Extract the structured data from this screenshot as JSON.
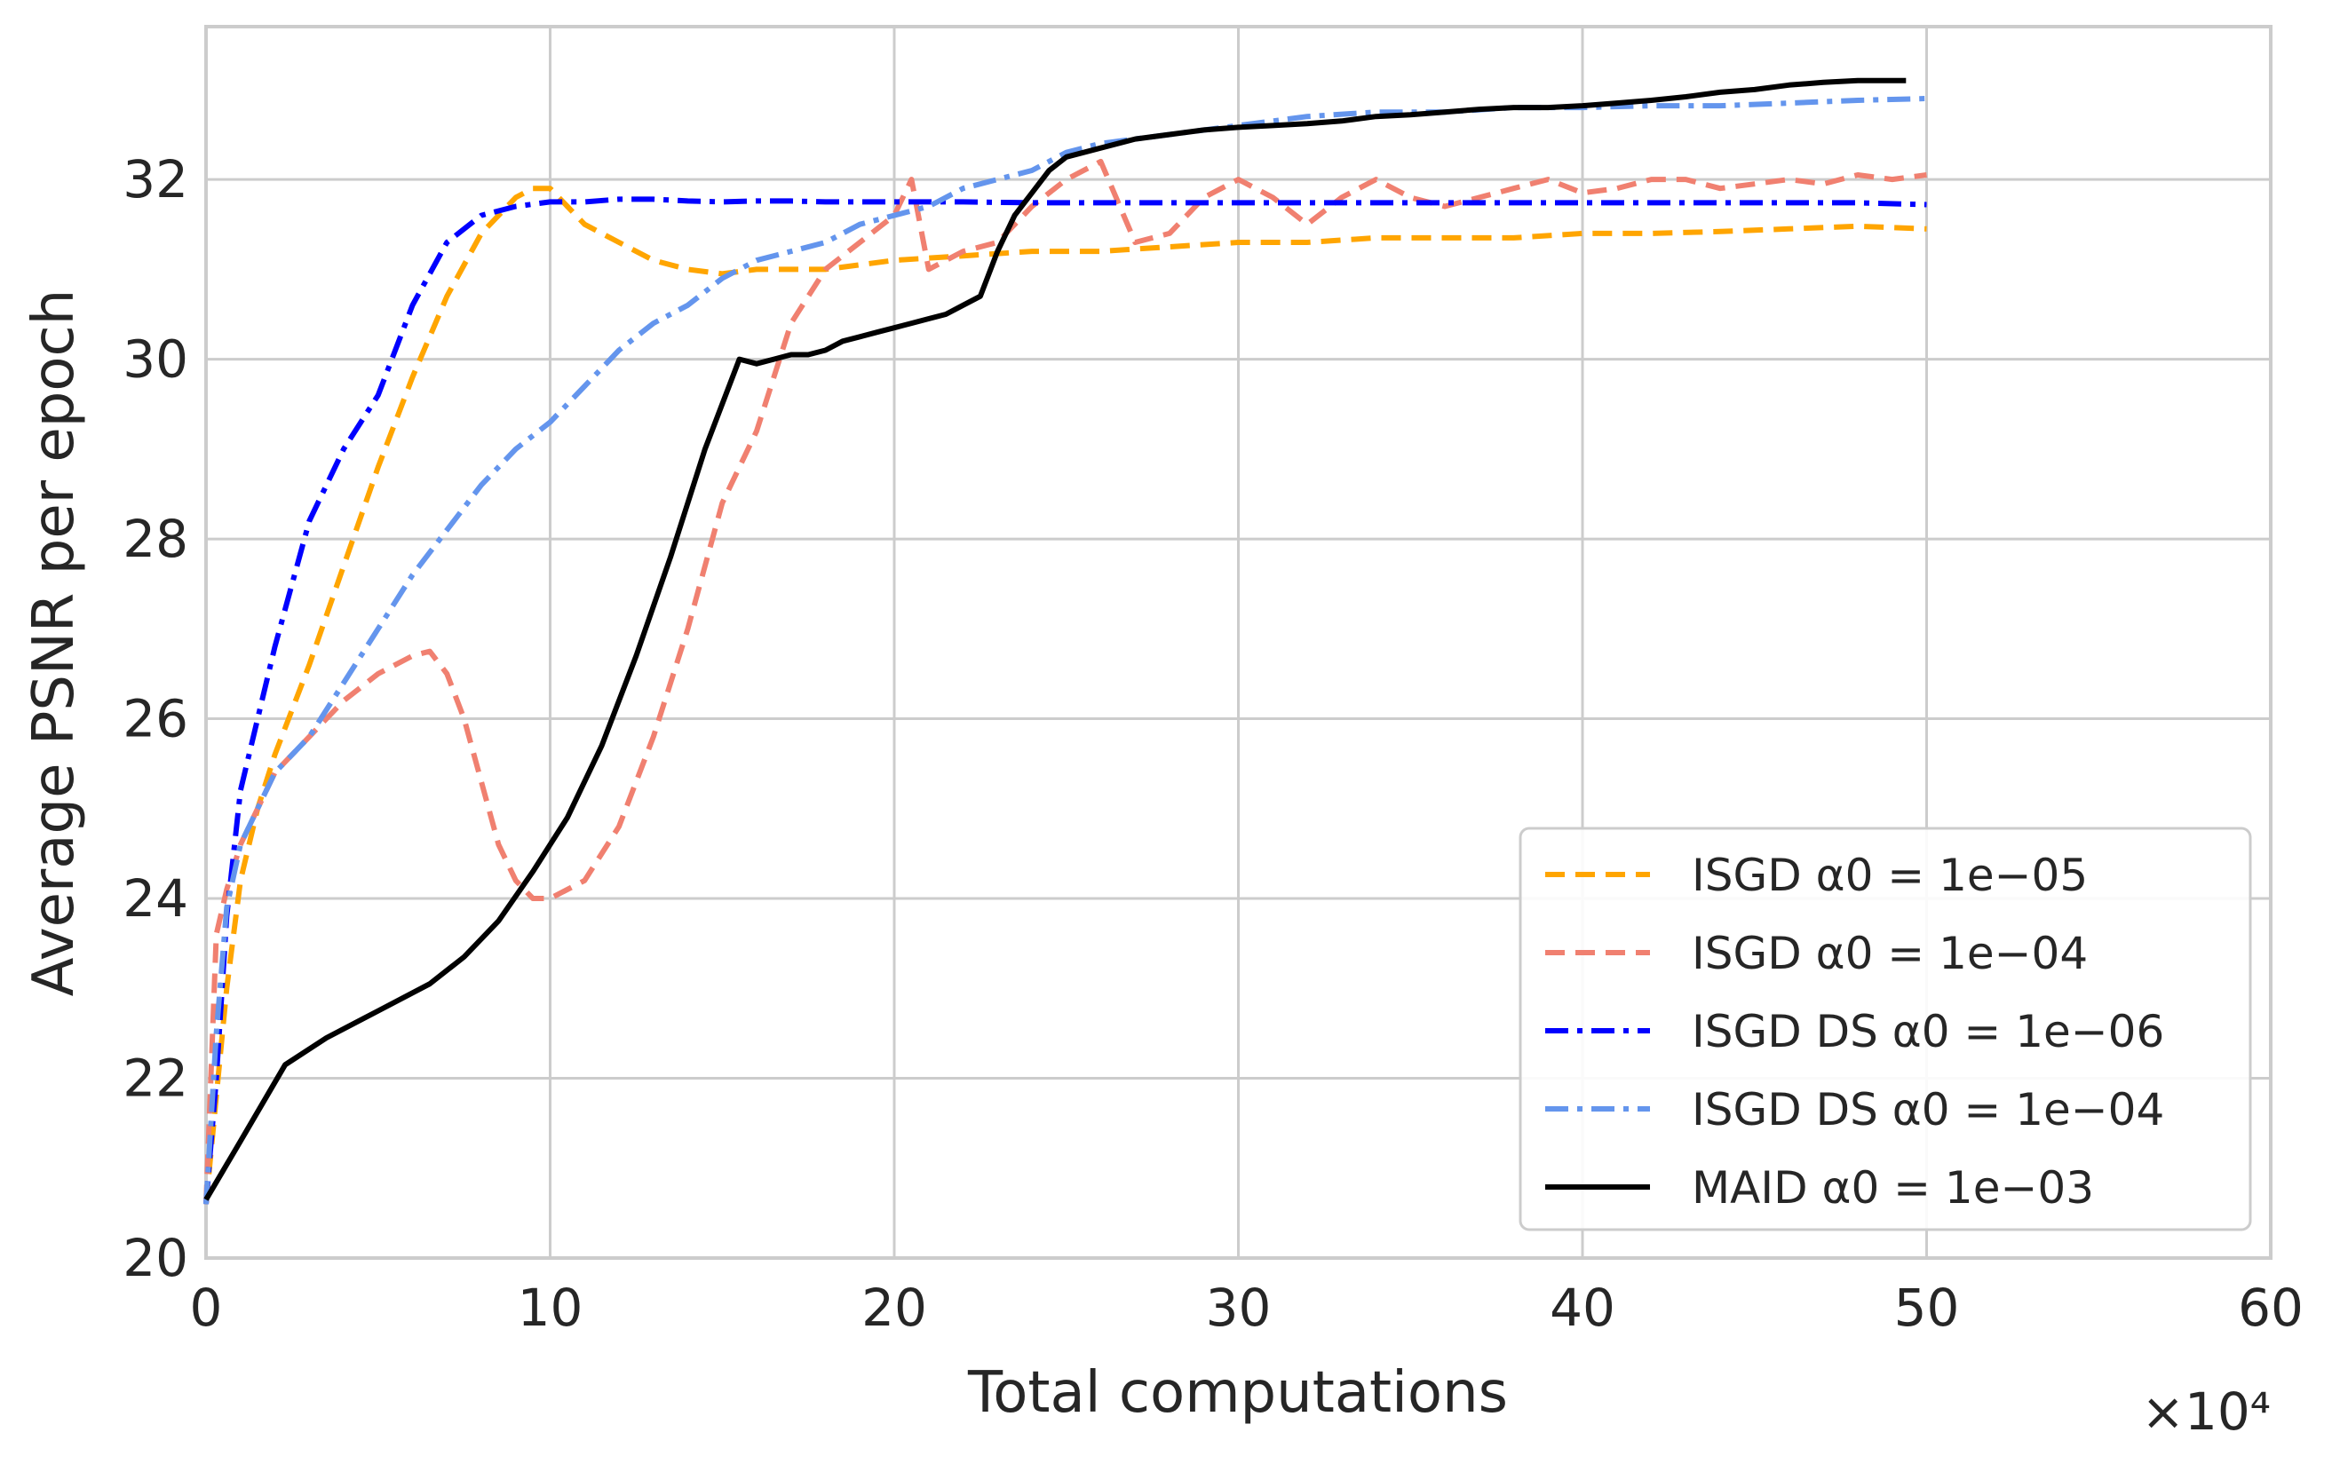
{
  "chart_data": {
    "type": "line",
    "title": "",
    "xlabel": "Total computations",
    "ylabel": "Average PSNR per epoch",
    "x_multiplier_label": "×10⁴",
    "xlim": [
      0,
      60
    ],
    "ylim": [
      20,
      33.7
    ],
    "xticks": [
      0,
      10,
      20,
      30,
      40,
      50,
      60
    ],
    "xtick_labels": [
      "0",
      "10",
      "20",
      "30",
      "40",
      "50",
      "60"
    ],
    "yticks": [
      20,
      22,
      24,
      26,
      28,
      30,
      32
    ],
    "ytick_labels": [
      "20",
      "22",
      "24",
      "26",
      "28",
      "30",
      "32"
    ],
    "grid": true,
    "legend_position": "bottom-right",
    "series": [
      {
        "name": "ISGD α0 = 1e−05",
        "color": "#FFA500",
        "dash": "dashed",
        "x": [
          0,
          0.3,
          0.6,
          1,
          1.5,
          2,
          3,
          4,
          5,
          6,
          7,
          8,
          9,
          9.5,
          10,
          10.5,
          11,
          12,
          13,
          14,
          15,
          16,
          17,
          18,
          19,
          20,
          22,
          24,
          26,
          28,
          30,
          32,
          34,
          36,
          38,
          40,
          42,
          44,
          46,
          48,
          50
        ],
        "y": [
          20.6,
          21.8,
          23.0,
          24.2,
          25.0,
          25.6,
          26.6,
          27.7,
          28.8,
          29.8,
          30.7,
          31.4,
          31.8,
          31.9,
          31.9,
          31.7,
          31.5,
          31.3,
          31.1,
          31.0,
          30.95,
          31.0,
          31.0,
          31.0,
          31.05,
          31.1,
          31.15,
          31.2,
          31.2,
          31.25,
          31.3,
          31.3,
          31.35,
          31.35,
          31.35,
          31.4,
          31.4,
          31.42,
          31.45,
          31.48,
          31.45
        ]
      },
      {
        "name": "ISGD α0 = 1e−04",
        "color": "#F08070",
        "dash": "dashed",
        "x": [
          0,
          0.3,
          0.6,
          1,
          1.5,
          2,
          3,
          4,
          5,
          6,
          6.5,
          7,
          7.5,
          8,
          8.5,
          9,
          9.5,
          10,
          11,
          12,
          13,
          14,
          15,
          16,
          17,
          18,
          19,
          20,
          20.5,
          21,
          22,
          23,
          24,
          25,
          26,
          27,
          28,
          29,
          30,
          31,
          32,
          33,
          34,
          35,
          36,
          37,
          38,
          39,
          40,
          41,
          42,
          43,
          44,
          45,
          46,
          47,
          48,
          49,
          50
        ],
        "y": [
          20.6,
          23.6,
          24.1,
          24.6,
          25.0,
          25.4,
          25.8,
          26.2,
          26.5,
          26.7,
          26.75,
          26.5,
          26.0,
          25.3,
          24.6,
          24.2,
          24.0,
          24.0,
          24.2,
          24.8,
          25.8,
          27.0,
          28.4,
          29.2,
          30.4,
          31.0,
          31.3,
          31.6,
          32.0,
          31.0,
          31.2,
          31.3,
          31.7,
          32.0,
          32.2,
          31.3,
          31.4,
          31.8,
          32.0,
          31.8,
          31.5,
          31.8,
          32.0,
          31.8,
          31.7,
          31.8,
          31.9,
          32.0,
          31.85,
          31.9,
          32.0,
          32.0,
          31.9,
          31.95,
          32.0,
          31.95,
          32.05,
          32.0,
          32.05
        ]
      },
      {
        "name": "ISGD DS α0 = 1e−06",
        "color": "#0000FF",
        "dash": "dashdot",
        "x": [
          0,
          0.3,
          0.6,
          1,
          1.5,
          2,
          3,
          4,
          5,
          6,
          7,
          8,
          9,
          10,
          11,
          12,
          13,
          14,
          15,
          16,
          17,
          18,
          19,
          20,
          22,
          24,
          26,
          28,
          30,
          32,
          34,
          36,
          38,
          40,
          42,
          44,
          46,
          48,
          50
        ],
        "y": [
          20.6,
          22.0,
          23.8,
          25.2,
          26.0,
          26.8,
          28.2,
          29.0,
          29.6,
          30.6,
          31.3,
          31.6,
          31.7,
          31.75,
          31.75,
          31.78,
          31.78,
          31.76,
          31.75,
          31.76,
          31.76,
          31.75,
          31.75,
          31.75,
          31.75,
          31.74,
          31.74,
          31.74,
          31.74,
          31.74,
          31.74,
          31.74,
          31.74,
          31.74,
          31.74,
          31.74,
          31.74,
          31.74,
          31.72
        ]
      },
      {
        "name": "ISGD DS α0 = 1e−04",
        "color": "#6495ED",
        "dash": "dashdot",
        "x": [
          0,
          0.3,
          0.6,
          1,
          1.5,
          2,
          3,
          4,
          5,
          6,
          7,
          8,
          9,
          10,
          11,
          12,
          13,
          14,
          15,
          16,
          17,
          18,
          19,
          20,
          21,
          22,
          23,
          24,
          25,
          26,
          28,
          30,
          32,
          34,
          36,
          38,
          40,
          42,
          44,
          46,
          48,
          50
        ],
        "y": [
          20.6,
          22.5,
          23.9,
          24.6,
          25.0,
          25.4,
          25.8,
          26.4,
          27.0,
          27.6,
          28.1,
          28.6,
          29.0,
          29.3,
          29.7,
          30.1,
          30.4,
          30.6,
          30.9,
          31.1,
          31.2,
          31.3,
          31.5,
          31.6,
          31.7,
          31.9,
          32.0,
          32.1,
          32.3,
          32.4,
          32.5,
          32.6,
          32.7,
          32.75,
          32.75,
          32.8,
          32.8,
          32.82,
          32.82,
          32.85,
          32.88,
          32.9
        ]
      },
      {
        "name": "MAID α0 = 1e−03",
        "color": "#000000",
        "dash": "solid",
        "x": [
          0,
          1,
          2.3,
          3.5,
          5,
          6.5,
          7.5,
          8.5,
          9.5,
          10.5,
          11.5,
          12.5,
          13.5,
          14.5,
          15.5,
          16,
          16.5,
          17,
          17.5,
          18,
          18.5,
          19,
          19.5,
          20,
          20.5,
          21,
          21.5,
          22,
          22.5,
          23,
          23.5,
          24,
          24.5,
          25,
          26,
          27,
          28,
          29,
          30,
          31,
          32,
          33,
          34,
          35,
          36,
          37,
          38,
          39,
          40,
          41,
          42,
          43,
          44,
          45,
          46,
          47,
          48,
          49.4
        ],
        "y": [
          20.65,
          21.3,
          22.15,
          22.45,
          22.75,
          23.05,
          23.35,
          23.75,
          24.3,
          24.9,
          25.7,
          26.7,
          27.8,
          29.0,
          30.0,
          29.95,
          30.0,
          30.05,
          30.05,
          30.1,
          30.2,
          30.25,
          30.3,
          30.35,
          30.4,
          30.45,
          30.5,
          30.6,
          30.7,
          31.2,
          31.6,
          31.85,
          32.1,
          32.25,
          32.35,
          32.45,
          32.5,
          32.55,
          32.58,
          32.6,
          32.62,
          32.65,
          32.7,
          32.72,
          32.75,
          32.78,
          32.8,
          32.8,
          32.82,
          32.85,
          32.88,
          32.92,
          32.97,
          33.0,
          33.05,
          33.08,
          33.1,
          33.1
        ]
      }
    ]
  }
}
